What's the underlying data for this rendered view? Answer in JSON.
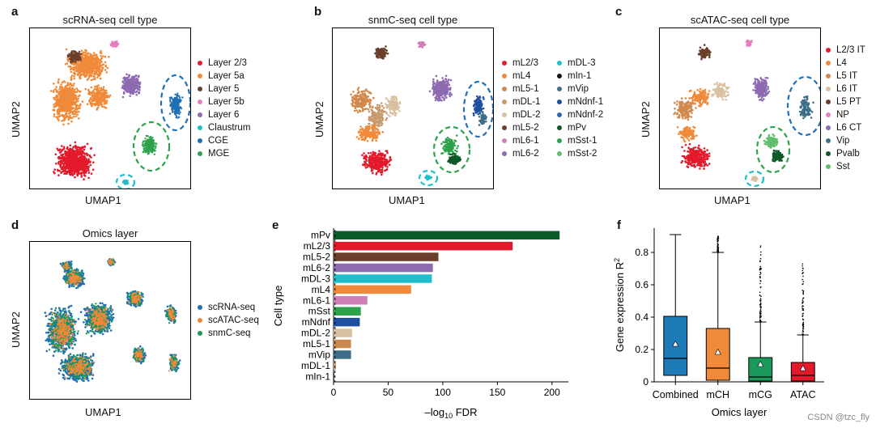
{
  "panel_labels": {
    "a": "a",
    "b": "b",
    "c": "c",
    "d": "d",
    "e": "e",
    "f": "f"
  },
  "umap_common": {
    "xlabel": "UMAP1",
    "ylabel": "UMAP2"
  },
  "panel_a": {
    "title": "scRNA-seq cell type",
    "legend": [
      {
        "label": "Layer 2/3",
        "color": "#e31a2c"
      },
      {
        "label": "Layer 5a",
        "color": "#f08a3a"
      },
      {
        "label": "Layer 5",
        "color": "#6b3f2a"
      },
      {
        "label": "Layer 5b",
        "color": "#e57ec2"
      },
      {
        "label": "Layer 6",
        "color": "#8c6bb1"
      },
      {
        "label": "Claustrum",
        "color": "#1fbfc9"
      },
      {
        "label": "CGE",
        "color": "#1f6fb4"
      },
      {
        "label": "MGE",
        "color": "#2ca24a"
      }
    ]
  },
  "panel_b": {
    "title": "snmC-seq cell type",
    "legend_col1": [
      {
        "label": "mL2/3",
        "color": "#e31a2c"
      },
      {
        "label": "mL4",
        "color": "#f08a3a"
      },
      {
        "label": "mL5-1",
        "color": "#d2894e"
      },
      {
        "label": "mDL-1",
        "color": "#c89a6e"
      },
      {
        "label": "mDL-2",
        "color": "#d9c0a0"
      },
      {
        "label": "mL5-2",
        "color": "#6b3f2a"
      },
      {
        "label": "mL6-1",
        "color": "#d07fb8"
      },
      {
        "label": "mL6-2",
        "color": "#8c6bb1"
      }
    ],
    "legend_col2": [
      {
        "label": "mDL-3",
        "color": "#1fbfc9"
      },
      {
        "label": "mIn-1",
        "color": "#111111"
      },
      {
        "label": "mVip",
        "color": "#3d6f88"
      },
      {
        "label": "mNdnf-1",
        "color": "#1f4fa0"
      },
      {
        "label": "mNdnf-2",
        "color": "#2c6ab8"
      },
      {
        "label": "mPv",
        "color": "#0c5a2a"
      },
      {
        "label": "mSst-1",
        "color": "#2ca24a"
      },
      {
        "label": "mSst-2",
        "color": "#5fbf6a"
      }
    ]
  },
  "panel_c": {
    "title": "scATAC-seq cell type",
    "legend": [
      {
        "label": "L2/3 IT",
        "color": "#e31a2c"
      },
      {
        "label": "L4",
        "color": "#f08a3a"
      },
      {
        "label": "L5 IT",
        "color": "#d2894e"
      },
      {
        "label": "L6 IT",
        "color": "#d9c0a0"
      },
      {
        "label": "L5 PT",
        "color": "#6b3f2a"
      },
      {
        "label": "NP",
        "color": "#e57ec2"
      },
      {
        "label": "L6 CT",
        "color": "#8c6bb1"
      },
      {
        "label": "Vip",
        "color": "#3d6f88"
      },
      {
        "label": "Pvalb",
        "color": "#0c5a2a"
      },
      {
        "label": "Sst",
        "color": "#5fbf6a"
      }
    ]
  },
  "panel_d": {
    "title": "Omics layer",
    "legend": [
      {
        "label": "scRNA-seq",
        "color": "#1f6fb4"
      },
      {
        "label": "scATAC-seq",
        "color": "#f08a3a"
      },
      {
        "label": "snmC-seq",
        "color": "#1a9a5a"
      }
    ]
  },
  "chart_data": [
    {
      "id": "panel_e",
      "type": "bar",
      "orientation": "horizontal",
      "xlabel": "–log10 FDR",
      "xlabel_main": "–log",
      "xlabel_sub": "10",
      "xlabel_tail": " FDR",
      "ylabel": "Cell type",
      "xlim": [
        0,
        215
      ],
      "xticks": [
        0,
        50,
        100,
        150,
        200
      ],
      "categories": [
        "mPv",
        "mL2/3",
        "mL5-2",
        "mL6-2",
        "mDL-3",
        "mL4",
        "mL6-1",
        "mSst",
        "mNdnf",
        "mDL-2",
        "mL5-1",
        "mVip",
        "mDL-1",
        "mIn-1"
      ],
      "values": [
        207,
        164,
        96,
        91,
        90,
        71,
        31,
        25,
        24,
        17,
        16,
        16,
        2,
        0.5
      ],
      "colors": [
        "#0c5a2a",
        "#e31a2c",
        "#6b3f2a",
        "#8c6bb1",
        "#1fbfc9",
        "#f08a3a",
        "#d07fb8",
        "#2ca24a",
        "#1f4fa0",
        "#d9c0a0",
        "#c88a4e",
        "#3d6f88",
        "#c89a6e",
        "#111111"
      ],
      "threshold_line": 1.3
    },
    {
      "id": "panel_f",
      "type": "box",
      "xlabel": "Omics layer",
      "ylabel": "Gene expression R",
      "ylabel_sup": "2",
      "ylim": [
        0,
        0.95
      ],
      "yticks": [
        "0",
        "0.2",
        "0.4",
        "0.6",
        "0.8"
      ],
      "ytick_values": [
        0,
        0.2,
        0.4,
        0.6,
        0.8
      ],
      "categories": [
        "Combined",
        "mCH",
        "mCG",
        "ATAC"
      ],
      "boxes": [
        {
          "label": "Combined",
          "color": "#1f7ab8",
          "q1": 0.04,
          "median": 0.145,
          "q3": 0.405,
          "mean": 0.235,
          "wlow": 0.0,
          "whigh": 0.91,
          "outlier_max": 0.91
        },
        {
          "label": "mCH",
          "color": "#f08a3a",
          "q1": 0.01,
          "median": 0.085,
          "q3": 0.33,
          "mean": 0.185,
          "wlow": 0.0,
          "whigh": 0.8,
          "outlier_max": 0.9
        },
        {
          "label": "mCG",
          "color": "#1a9a5a",
          "q1": 0.005,
          "median": 0.03,
          "q3": 0.15,
          "mean": 0.11,
          "wlow": 0.0,
          "whigh": 0.37,
          "outlier_max": 0.85
        },
        {
          "label": "ATAC",
          "color": "#e31a2c",
          "q1": 0.005,
          "median": 0.04,
          "q3": 0.12,
          "mean": 0.085,
          "wlow": 0.0,
          "whigh": 0.29,
          "outlier_max": 0.74
        }
      ]
    }
  ],
  "watermark": "CSDN @tzc_fly"
}
